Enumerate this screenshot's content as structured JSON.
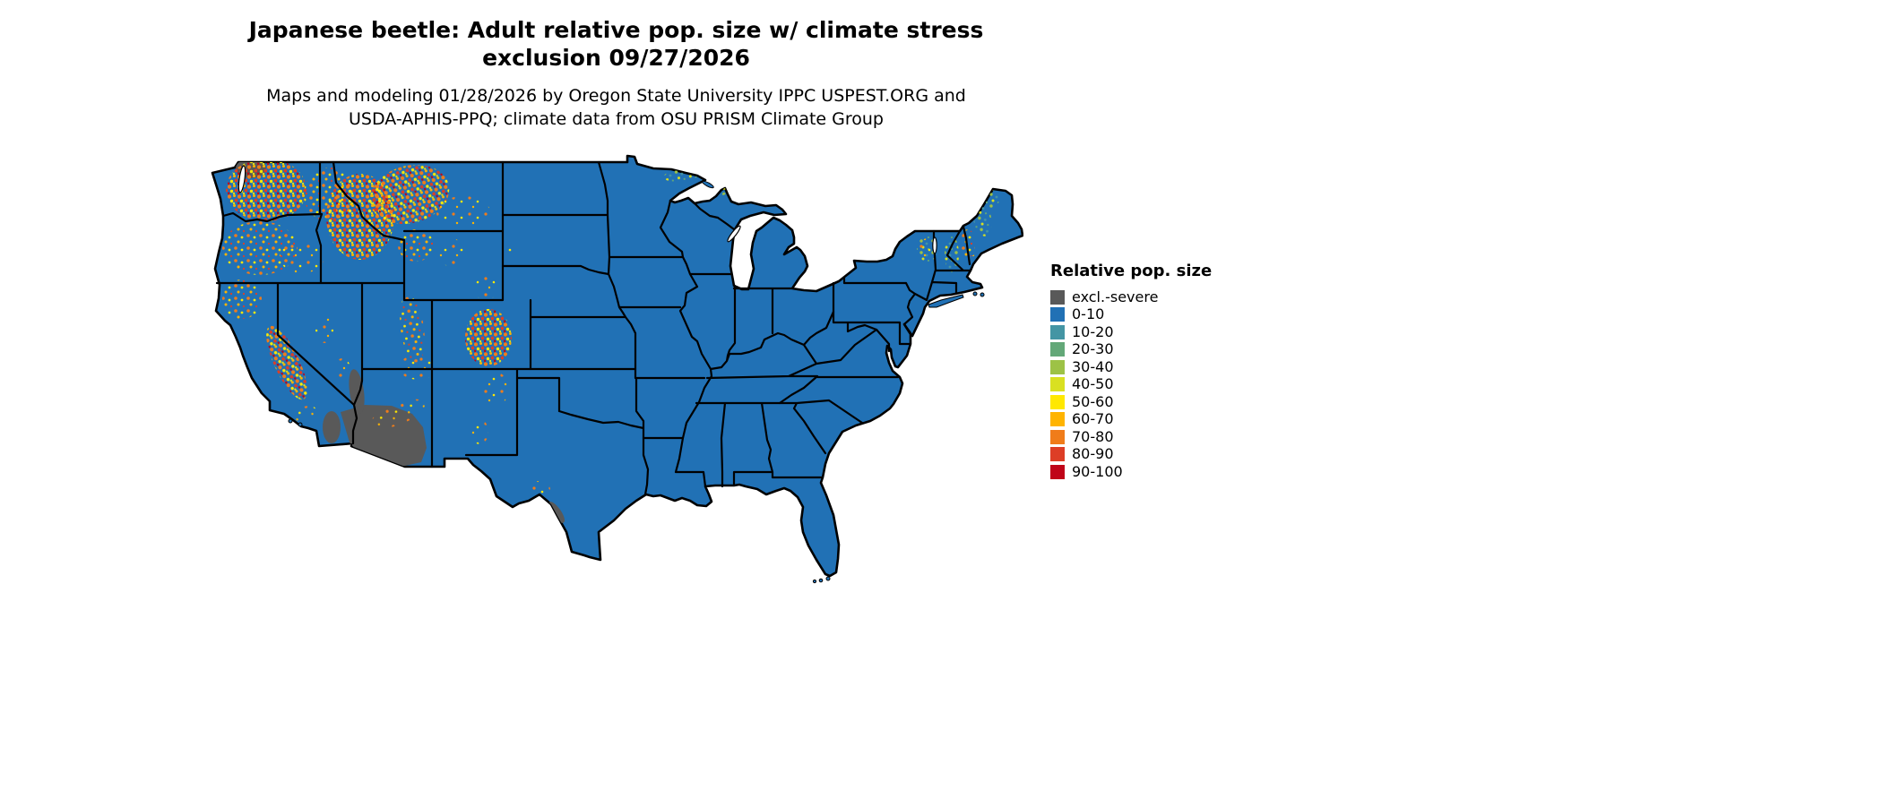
{
  "page": {
    "background": "#FFFFFF"
  },
  "title": {
    "line1": "Japanese beetle: Adult relative pop. size w/ climate stress",
    "line2": "exclusion 09/27/2026"
  },
  "subtitle": {
    "line1": "Maps and modeling 01/28/2026 by Oregon State University IPPC USPEST.ORG and",
    "line2": "USDA-APHIS-PPQ; climate data from OSU PRISM Climate Group"
  },
  "legend": {
    "title": "Relative pop. size",
    "items": [
      {
        "label": "excl.-severe",
        "color": "#595959"
      },
      {
        "label": "0-10",
        "color": "#2171B5"
      },
      {
        "label": "10-20",
        "color": "#4495A4"
      },
      {
        "label": "20-30",
        "color": "#63A878"
      },
      {
        "label": "30-40",
        "color": "#9DC246"
      },
      {
        "label": "40-50",
        "color": "#D9E021"
      },
      {
        "label": "50-60",
        "color": "#FFE800"
      },
      {
        "label": "60-70",
        "color": "#FFB400"
      },
      {
        "label": "70-80",
        "color": "#F07C1A"
      },
      {
        "label": "80-90",
        "color": "#DD3E26"
      },
      {
        "label": "90-100",
        "color": "#C00418"
      }
    ]
  },
  "map": {
    "region": "Contiguous United States",
    "land_color": "#2171B5",
    "border_color": "#000000",
    "water_color": "#FFFFFF",
    "exclusion_color": "#595959",
    "palette": {
      "gray": "#595959",
      "blue": "#2171B5",
      "teal": "#4495A4",
      "green": "#63A878",
      "yellowgreen": "#9DC246",
      "lime": "#D9E021",
      "yellow": "#FFE800",
      "amber": "#FFB400",
      "orange": "#F07C1A",
      "redorange": "#DD3E26",
      "red": "#C00418"
    }
  }
}
